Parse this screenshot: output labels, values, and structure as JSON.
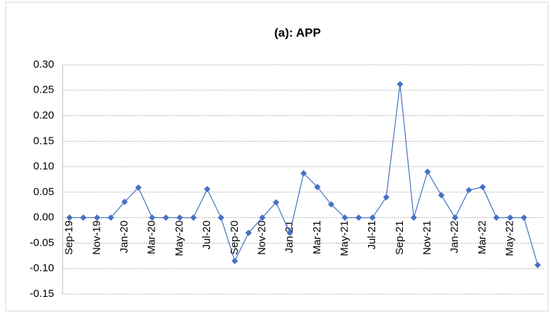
{
  "chart_data": {
    "type": "line",
    "title": "(a): APP",
    "categories": [
      "Sep-19",
      null,
      "Nov-19",
      null,
      "Jan-20",
      null,
      "Mar-20",
      null,
      "May-20",
      null,
      "Jul-20",
      null,
      "Sep-20",
      null,
      "Nov-20",
      null,
      "Jan-21",
      null,
      "Mar-21",
      null,
      "May-21",
      null,
      "Jul-21",
      null,
      "Sep-21",
      null,
      "Nov-21",
      null,
      "Jan-22",
      null,
      "Mar-22",
      null,
      "May-22",
      null,
      null
    ],
    "series": [
      {
        "color": "#4472c4",
        "values": [
          0,
          0,
          0,
          0,
          0.031,
          0.059,
          0,
          0,
          0,
          0,
          0.056,
          0,
          -0.085,
          -0.03,
          0,
          0.03,
          -0.03,
          0.087,
          0.06,
          0.026,
          0,
          0,
          0,
          0.04,
          0.262,
          0,
          0.09,
          0.044,
          0,
          0.054,
          0.06,
          0,
          0,
          0,
          -0.093
        ]
      }
    ],
    "ylim": [
      -0.15,
      0.3
    ],
    "yticks": [
      {
        "value": -0.15,
        "label": "-0.15"
      },
      {
        "value": -0.1,
        "label": "-0.10"
      },
      {
        "value": -0.05,
        "label": "-0.05"
      },
      {
        "value": 0,
        "label": "0.00"
      },
      {
        "value": 0.05,
        "label": "0.05"
      },
      {
        "value": 0.1,
        "label": "0.10"
      },
      {
        "value": 0.15,
        "label": "0.15"
      },
      {
        "value": 0.2,
        "label": "0.20"
      },
      {
        "value": 0.25,
        "label": "0.25"
      },
      {
        "value": 0.3,
        "label": "0.30"
      }
    ],
    "grid": true
  }
}
